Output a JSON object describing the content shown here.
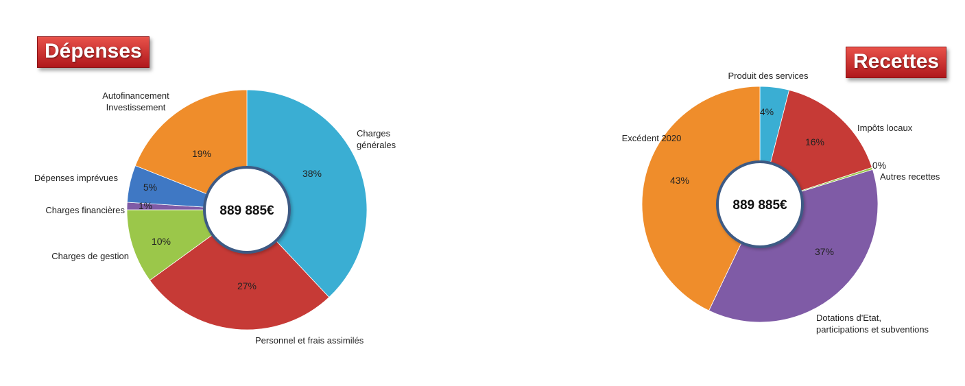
{
  "titles": {
    "depenses": "Dépenses",
    "recettes": "Recettes"
  },
  "chart_data": [
    {
      "type": "pie",
      "title": "Dépenses",
      "center_total": "889 885€",
      "categories": [
        "Charges générales",
        "Personnel et frais assimilés",
        "Charges de gestion",
        "Charges financières",
        "Dépenses imprévues",
        "Autofinancement Investissement"
      ],
      "category_display": [
        [
          "Charges",
          "générales"
        ],
        [
          "Personnel et frais assimilés"
        ],
        [
          "Charges  de gestion"
        ],
        [
          "Charges financières"
        ],
        [
          "Dépenses imprévues"
        ],
        [
          "Autofinancement",
          "Investissement"
        ]
      ],
      "values": [
        38,
        27,
        10,
        1,
        5,
        19
      ],
      "value_labels": [
        "38%",
        "27%",
        "10%",
        "1%",
        "5%",
        "19%"
      ],
      "colors": [
        "#3aaed3",
        "#c63a36",
        "#9bc74a",
        "#7f5ba6",
        "#3f78c4",
        "#ef8d2b"
      ]
    },
    {
      "type": "pie",
      "title": "Recettes",
      "center_total": "889 885€",
      "categories": [
        "Produit des services",
        "Impôts locaux",
        "Autres recettes",
        "Dotations d'Etat, participations et subventions",
        "Excédent 2020"
      ],
      "category_display": [
        [
          "Produit des services"
        ],
        [
          "Impôts locaux"
        ],
        [
          "Autres recettes"
        ],
        [
          "Dotations d'Etat,",
          "participations et subventions"
        ],
        [
          "Excédent 2020"
        ]
      ],
      "values": [
        4,
        16,
        0.3,
        37,
        43
      ],
      "value_labels": [
        "4%",
        "16%",
        "0%",
        "37%",
        "43%"
      ],
      "colors": [
        "#3aaed3",
        "#c63a36",
        "#9bc74a",
        "#7f5ba6",
        "#ef8d2b"
      ]
    }
  ]
}
